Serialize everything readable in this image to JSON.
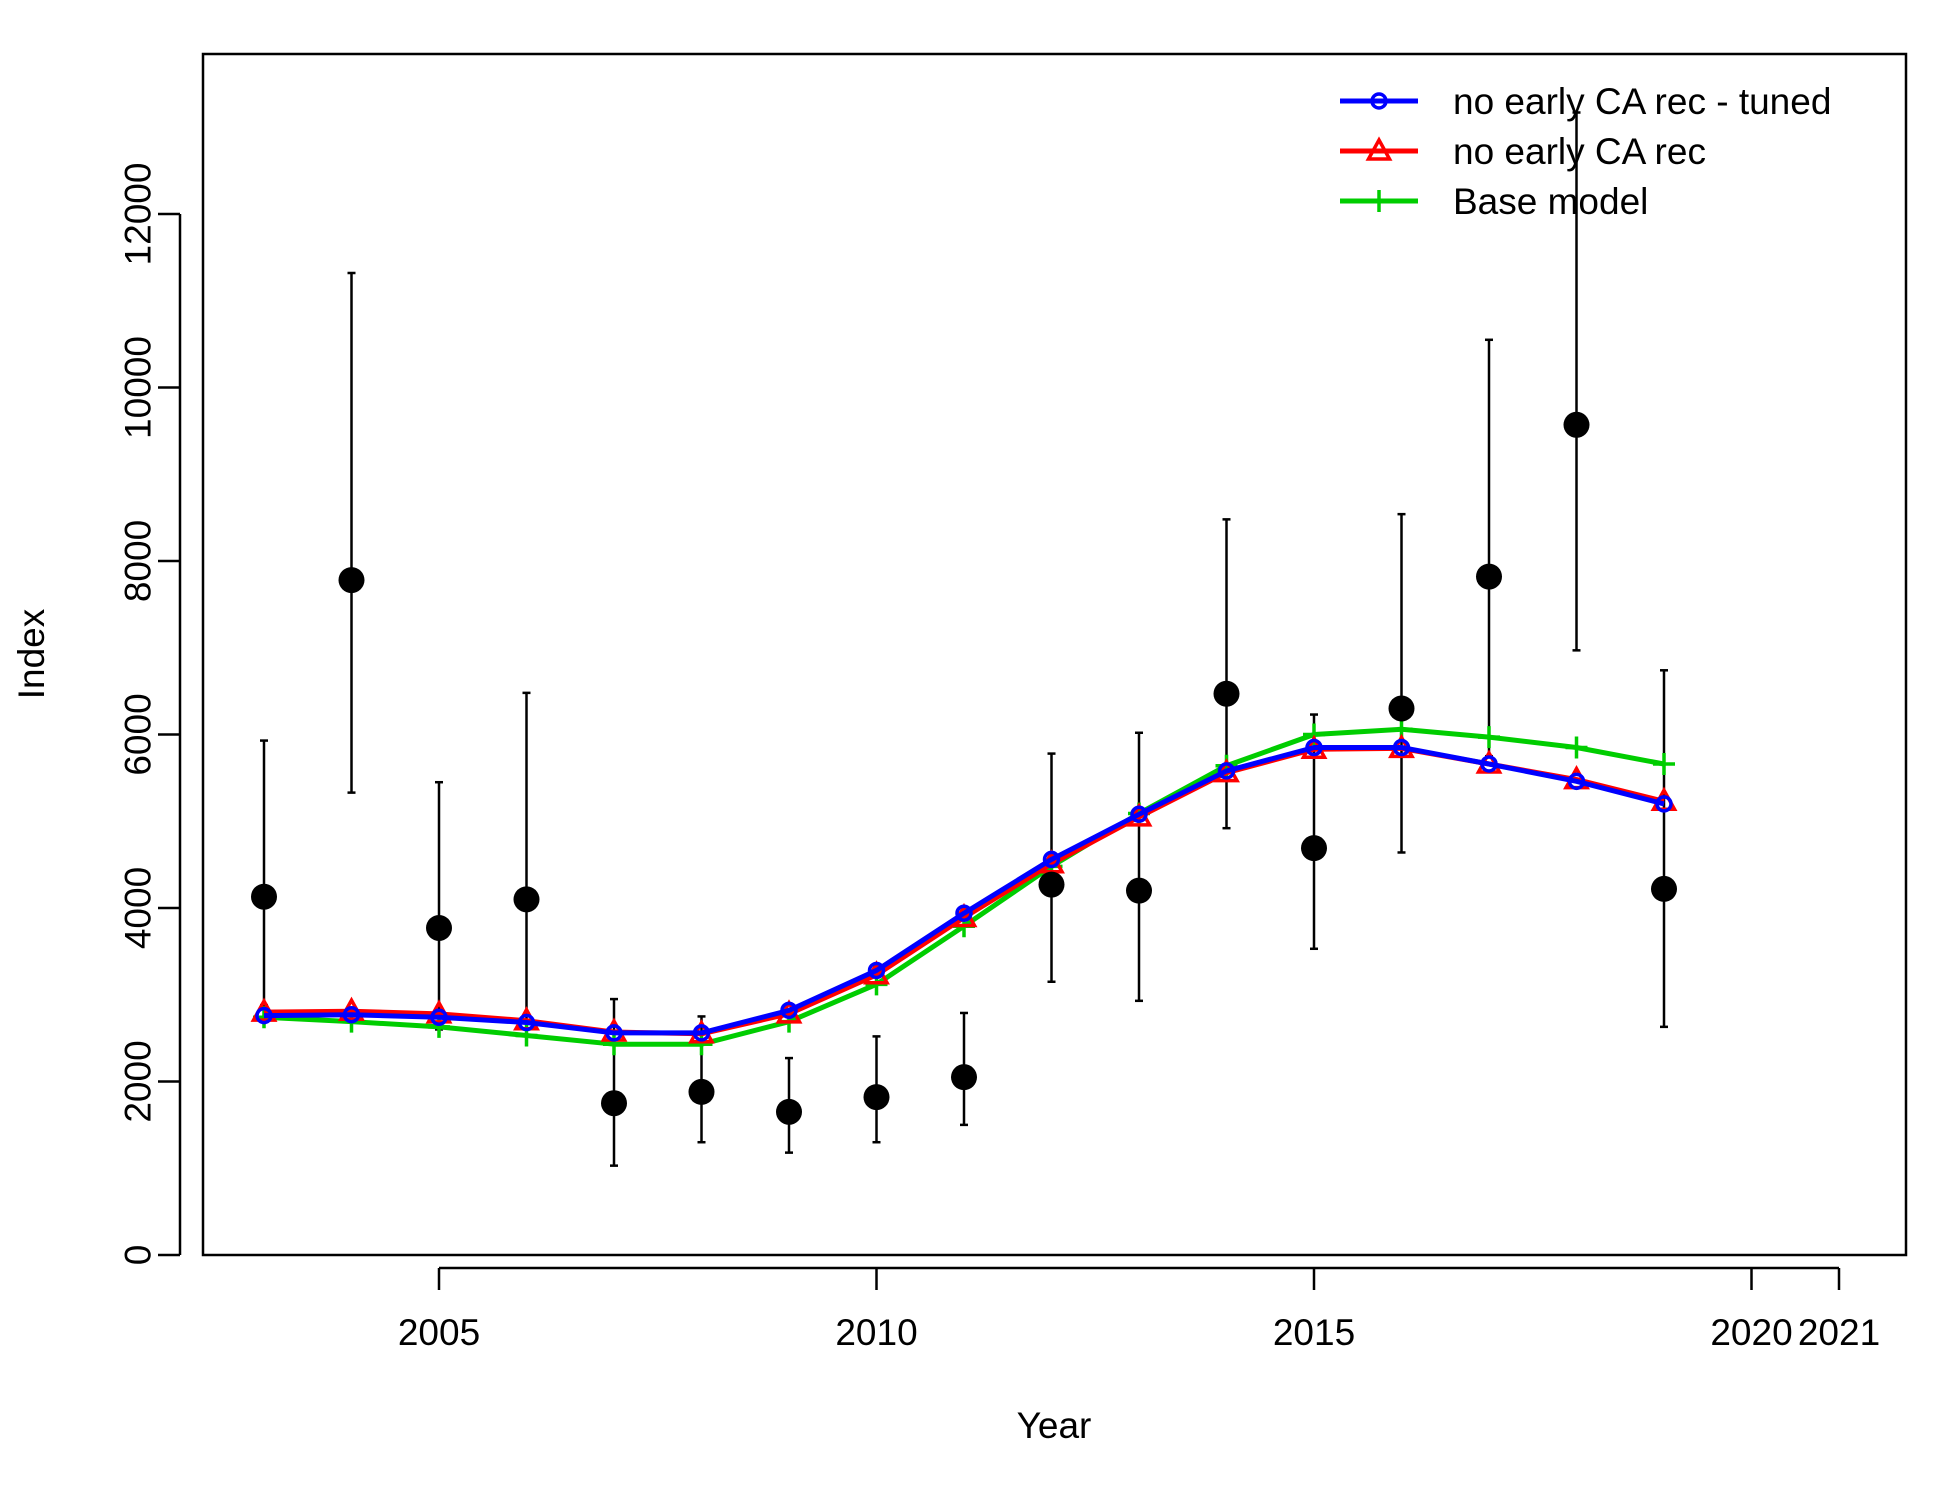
{
  "chart_data": {
    "type": "line",
    "title": "",
    "xlabel": "Year",
    "ylabel": "Index",
    "xlim": [
      2002.4,
      2021.6
    ],
    "ylim": [
      0,
      13000
    ],
    "x_ticks": [
      2005,
      2010,
      2015,
      2020,
      2021
    ],
    "y_ticks": [
      0,
      2000,
      4000,
      6000,
      8000,
      10000,
      12000
    ],
    "grid": false,
    "legend_position": "top-right",
    "colors": {
      "observed": "#000000",
      "no_early_tuned": "#0000ff",
      "no_early": "#ff0000",
      "base": "#00cd00"
    },
    "observed": {
      "x": [
        2003,
        2004,
        2005,
        2006,
        2007,
        2008,
        2009,
        2010,
        2011,
        2012,
        2013,
        2014,
        2015,
        2016,
        2017,
        2018,
        2019
      ],
      "y": [
        4130,
        7780,
        3770,
        4100,
        1750,
        1880,
        1650,
        1820,
        2050,
        4270,
        4200,
        6470,
        4690,
        6300,
        7820,
        9570,
        4220
      ],
      "lower": [
        2880,
        5330,
        2600,
        2600,
        1030,
        1300,
        1180,
        1300,
        1500,
        3150,
        2930,
        4920,
        3530,
        4640,
        5750,
        6970,
        2630
      ],
      "upper": [
        5930,
        11320,
        5450,
        6480,
        2950,
        2750,
        2270,
        2520,
        2790,
        5780,
        6020,
        8480,
        6230,
        8540,
        10550,
        13170,
        6740
      ]
    },
    "series": [
      {
        "name": "no early CA rec - tuned",
        "key": "no_early_tuned",
        "marker": "circle",
        "x": [
          2003,
          2004,
          2005,
          2006,
          2007,
          2008,
          2009,
          2010,
          2011,
          2012,
          2013,
          2014,
          2015,
          2016,
          2017,
          2018,
          2019
        ],
        "values": [
          2760,
          2770,
          2740,
          2680,
          2560,
          2560,
          2820,
          3280,
          3940,
          4560,
          5080,
          5580,
          5850,
          5850,
          5660,
          5460,
          5200
        ]
      },
      {
        "name": "no early CA rec",
        "key": "no_early",
        "marker": "triangle",
        "x": [
          2003,
          2004,
          2005,
          2006,
          2007,
          2008,
          2009,
          2010,
          2011,
          2012,
          2013,
          2014,
          2015,
          2016,
          2017,
          2018,
          2019
        ],
        "values": [
          2800,
          2810,
          2780,
          2700,
          2570,
          2550,
          2780,
          3230,
          3890,
          4510,
          5050,
          5560,
          5830,
          5840,
          5660,
          5480,
          5230
        ]
      },
      {
        "name": "Base model",
        "key": "base",
        "marker": "plus",
        "x": [
          2003,
          2004,
          2005,
          2006,
          2007,
          2008,
          2009,
          2010,
          2011,
          2012,
          2013,
          2014,
          2015,
          2016,
          2017,
          2018,
          2019
        ],
        "values": [
          2740,
          2690,
          2630,
          2530,
          2430,
          2430,
          2690,
          3120,
          3790,
          4480,
          5090,
          5640,
          6000,
          6060,
          5970,
          5850,
          5660
        ]
      }
    ]
  }
}
